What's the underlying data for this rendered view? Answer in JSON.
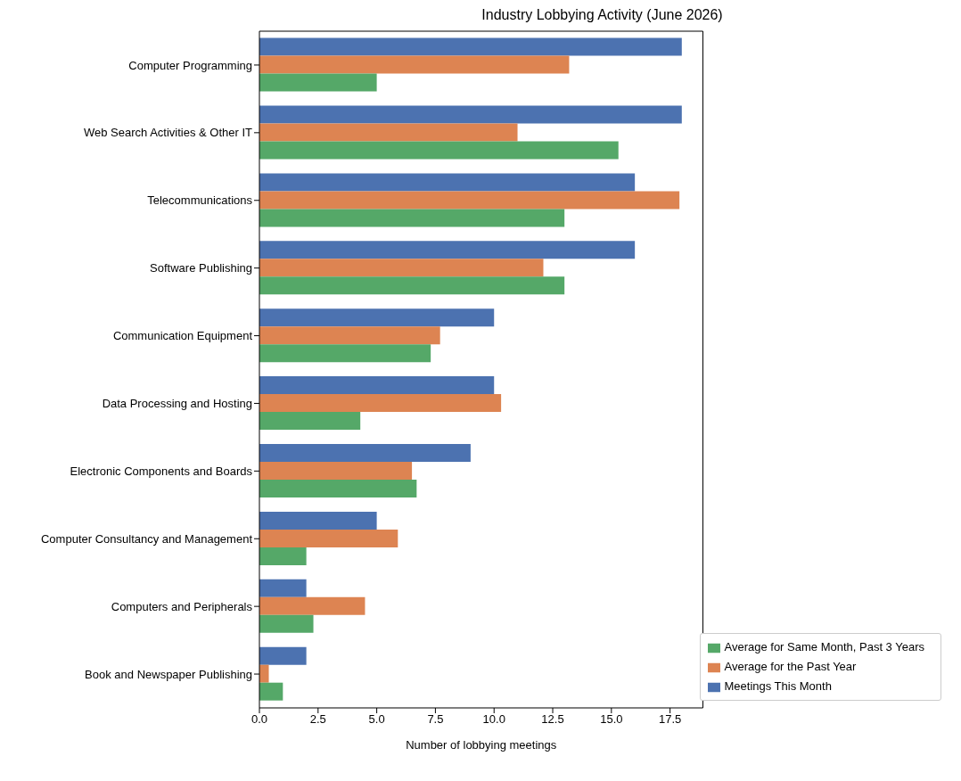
{
  "chart_data": {
    "type": "bar",
    "orientation": "horizontal",
    "title": "Industry Lobbying Activity (June 2026)",
    "xlabel": "Number of lobbying meetings",
    "categories": [
      "Computer Programming",
      "Web Search Activities & Other IT",
      "Telecommunications",
      "Software Publishing",
      "Communication Equipment",
      "Data Processing and Hosting",
      "Electronic Components and Boards",
      "Computer Consultancy and Management",
      "Computers and Peripherals",
      "Book and Newspaper Publishing"
    ],
    "series": [
      {
        "name": "Meetings This Month",
        "color": "#4c72b0",
        "values": [
          18,
          18,
          16,
          16,
          10,
          10,
          9,
          5,
          2,
          2
        ]
      },
      {
        "name": "Average for the Past Year",
        "color": "#dd8452",
        "values": [
          13.2,
          11,
          17.9,
          12.1,
          7.7,
          10.3,
          6.5,
          5.9,
          4.5,
          0.4
        ]
      },
      {
        "name": "Average for Same Month, Past 3 Years",
        "color": "#55a868",
        "values": [
          5,
          15.3,
          13,
          13,
          7.3,
          4.3,
          6.7,
          2,
          2.3,
          1
        ]
      }
    ],
    "xlim": [
      0,
      18.9
    ],
    "xticks": [
      {
        "value": 0,
        "label": "0.0"
      },
      {
        "value": 2.5,
        "label": "2.5"
      },
      {
        "value": 5,
        "label": "5.0"
      },
      {
        "value": 7.5,
        "label": "7.5"
      },
      {
        "value": 10,
        "label": "10.0"
      },
      {
        "value": 12.5,
        "label": "12.5"
      },
      {
        "value": 15,
        "label": "15.0"
      },
      {
        "value": 17.5,
        "label": "17.5"
      }
    ],
    "grid": false,
    "legend": "bottom right"
  }
}
